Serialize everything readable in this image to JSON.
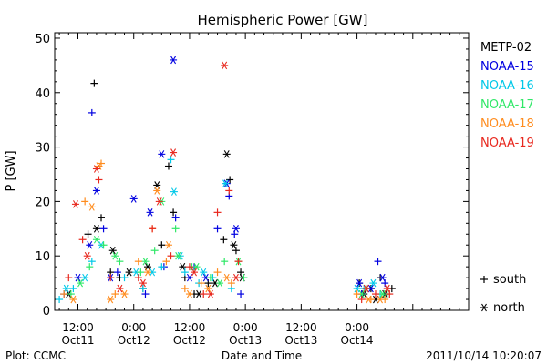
{
  "footer": {
    "plot_by": "Plot: CCMC",
    "timestamp": "2011/10/14 10:20:07"
  },
  "chart_data": {
    "type": "scatter",
    "title": "Hemispheric Power [GW]",
    "xlabel": "Date and Time",
    "ylabel": "P [GW]",
    "xlim": [
      "2011-10-11T07:00",
      "2011-10-15T00:00"
    ],
    "ylim": [
      0,
      51
    ],
    "y_ticks": [
      0,
      10,
      20,
      30,
      40,
      50
    ],
    "x_ticks": [
      {
        "time": "2011-10-11T12:00",
        "label": "12:00",
        "sublabel": "Oct11"
      },
      {
        "time": "2011-10-12T00:00",
        "label": "0:00",
        "sublabel": "Oct12"
      },
      {
        "time": "2011-10-12T12:00",
        "label": "12:00",
        "sublabel": "Oct12"
      },
      {
        "time": "2011-10-13T00:00",
        "label": "0:00",
        "sublabel": "Oct13"
      },
      {
        "time": "2011-10-13T12:00",
        "label": "12:00",
        "sublabel": "Oct13"
      },
      {
        "time": "2011-10-14T00:00",
        "label": "0:00",
        "sublabel": "Oct14"
      }
    ],
    "marker_legend": [
      {
        "symbol": "+",
        "label": "south"
      },
      {
        "symbol": "*",
        "label": "north"
      }
    ],
    "series": [
      {
        "name": "METP-02",
        "color": "#000000",
        "south": [
          [
            "2011-10-11T14:10",
            14
          ],
          [
            "2011-10-11T15:30",
            41.7
          ],
          [
            "2011-10-11T17:00",
            17
          ],
          [
            "2011-10-11T19:00",
            7
          ],
          [
            "2011-10-11T21:00",
            6
          ],
          [
            "2011-10-12T02:00",
            4
          ],
          [
            "2011-10-12T06:00",
            12
          ],
          [
            "2011-10-12T07:30",
            26.5
          ],
          [
            "2011-10-12T08:30",
            18
          ],
          [
            "2011-10-12T11:00",
            6
          ],
          [
            "2011-10-12T13:00",
            3
          ],
          [
            "2011-10-12T16:00",
            5
          ],
          [
            "2011-10-12T19:20",
            13
          ],
          [
            "2011-10-12T20:40",
            24
          ],
          [
            "2011-10-12T22:00",
            11
          ],
          [
            "2011-10-12T23:00",
            7
          ],
          [
            "2011-10-14T00:30",
            5
          ],
          [
            "2011-10-14T03:00",
            4
          ],
          [
            "2011-10-14T05:00",
            6
          ],
          [
            "2011-10-14T07:30",
            4
          ]
        ],
        "north": [
          [
            "2011-10-11T10:00",
            3
          ],
          [
            "2011-10-11T16:00",
            15
          ],
          [
            "2011-10-11T19:30",
            11
          ],
          [
            "2011-10-11T23:00",
            7
          ],
          [
            "2011-10-12T03:00",
            8
          ],
          [
            "2011-10-12T05:00",
            23
          ],
          [
            "2011-10-12T10:30",
            8
          ],
          [
            "2011-10-12T14:00",
            3
          ],
          [
            "2011-10-12T17:30",
            5
          ],
          [
            "2011-10-12T20:00",
            28.7
          ],
          [
            "2011-10-12T21:30",
            12
          ],
          [
            "2011-10-12T23:20",
            6
          ],
          [
            "2011-10-14T01:30",
            3
          ],
          [
            "2011-10-14T04:00",
            2
          ],
          [
            "2011-10-14T06:00",
            3
          ]
        ]
      },
      {
        "name": "NOAA-15",
        "color": "#0000e0",
        "south": [
          [
            "2011-10-11T09:00",
            3
          ],
          [
            "2011-10-11T15:00",
            36.3
          ],
          [
            "2011-10-11T17:30",
            15
          ],
          [
            "2011-10-11T20:30",
            7
          ],
          [
            "2011-10-12T02:30",
            3
          ],
          [
            "2011-10-12T06:30",
            8
          ],
          [
            "2011-10-12T09:00",
            17
          ],
          [
            "2011-10-12T13:00",
            8
          ],
          [
            "2011-10-12T18:00",
            15
          ],
          [
            "2011-10-12T20:30",
            21
          ],
          [
            "2011-10-12T21:40",
            14
          ],
          [
            "2011-10-12T23:00",
            3
          ],
          [
            "2011-10-14T01:00",
            3
          ],
          [
            "2011-10-14T04:30",
            9
          ],
          [
            "2011-10-14T06:00",
            5
          ]
        ],
        "north": [
          [
            "2011-10-11T12:00",
            6
          ],
          [
            "2011-10-11T14:30",
            12
          ],
          [
            "2011-10-11T16:00",
            22
          ],
          [
            "2011-10-11T19:00",
            6
          ],
          [
            "2011-10-12T00:00",
            20.5
          ],
          [
            "2011-10-12T03:30",
            18
          ],
          [
            "2011-10-12T06:00",
            28.7
          ],
          [
            "2011-10-12T08:30",
            46
          ],
          [
            "2011-10-12T12:00",
            6
          ],
          [
            "2011-10-12T15:30",
            6
          ],
          [
            "2011-10-12T20:00",
            23.3
          ],
          [
            "2011-10-12T22:00",
            15
          ],
          [
            "2011-10-14T00:30",
            5
          ],
          [
            "2011-10-14T03:00",
            4
          ],
          [
            "2011-10-14T05:30",
            6
          ]
        ]
      },
      {
        "name": "NOAA-16",
        "color": "#00c8e8",
        "south": [
          [
            "2011-10-11T08:00",
            2
          ],
          [
            "2011-10-11T11:00",
            4
          ],
          [
            "2011-10-11T15:00",
            9
          ],
          [
            "2011-10-11T22:00",
            6
          ],
          [
            "2011-10-12T02:00",
            4
          ],
          [
            "2011-10-12T06:00",
            8
          ],
          [
            "2011-10-12T08:00",
            27.7
          ],
          [
            "2011-10-12T11:00",
            7
          ],
          [
            "2011-10-12T14:00",
            5
          ],
          [
            "2011-10-12T17:00",
            6
          ],
          [
            "2011-10-12T21:00",
            4
          ],
          [
            "2011-10-14T01:30",
            4
          ],
          [
            "2011-10-14T05:00",
            3
          ]
        ],
        "north": [
          [
            "2011-10-11T09:30",
            4
          ],
          [
            "2011-10-11T13:30",
            6
          ],
          [
            "2011-10-11T17:00",
            12
          ],
          [
            "2011-10-12T00:30",
            7
          ],
          [
            "2011-10-12T04:00",
            7
          ],
          [
            "2011-10-12T08:40",
            21.8
          ],
          [
            "2011-10-12T10:00",
            10
          ],
          [
            "2011-10-12T15:00",
            7
          ],
          [
            "2011-10-12T19:40",
            23.3
          ],
          [
            "2011-10-14T00:00",
            4
          ],
          [
            "2011-10-14T03:30",
            5
          ]
        ]
      },
      {
        "name": "NOAA-17",
        "color": "#30e868",
        "south": [
          [
            "2011-10-11T10:30",
            3
          ],
          [
            "2011-10-11T14:30",
            8
          ],
          [
            "2011-10-11T17:30",
            12
          ],
          [
            "2011-10-11T21:00",
            9
          ],
          [
            "2011-10-12T01:30",
            7
          ],
          [
            "2011-10-12T04:30",
            11
          ],
          [
            "2011-10-12T09:00",
            15
          ],
          [
            "2011-10-12T12:30",
            8
          ],
          [
            "2011-10-12T16:30",
            6
          ],
          [
            "2011-10-12T19:30",
            9
          ],
          [
            "2011-10-12T23:40",
            6
          ],
          [
            "2011-10-14T02:00",
            4
          ],
          [
            "2011-10-14T06:30",
            3
          ]
        ],
        "north": [
          [
            "2011-10-11T12:30",
            5
          ],
          [
            "2011-10-11T16:00",
            13
          ],
          [
            "2011-10-11T20:00",
            10
          ],
          [
            "2011-10-12T02:30",
            9
          ],
          [
            "2011-10-12T06:00",
            20
          ],
          [
            "2011-10-12T09:30",
            10
          ],
          [
            "2011-10-12T13:30",
            8
          ],
          [
            "2011-10-12T18:30",
            5
          ],
          [
            "2011-10-12T22:30",
            9
          ],
          [
            "2011-10-14T01:00",
            3
          ],
          [
            "2011-10-14T05:30",
            3
          ]
        ]
      },
      {
        "name": "NOAA-18",
        "color": "#ff8c1e",
        "south": [
          [
            "2011-10-11T09:00",
            3
          ],
          [
            "2011-10-11T13:30",
            20
          ],
          [
            "2011-10-11T17:00",
            27
          ],
          [
            "2011-10-11T20:00",
            3
          ],
          [
            "2011-10-12T01:00",
            9
          ],
          [
            "2011-10-12T04:00",
            15
          ],
          [
            "2011-10-12T07:00",
            9
          ],
          [
            "2011-10-12T11:00",
            4
          ],
          [
            "2011-10-12T14:30",
            5
          ],
          [
            "2011-10-12T18:00",
            7
          ],
          [
            "2011-10-12T21:00",
            5
          ],
          [
            "2011-10-14T00:00",
            3
          ],
          [
            "2011-10-14T03:00",
            2
          ],
          [
            "2011-10-14T06:00",
            2
          ]
        ],
        "north": [
          [
            "2011-10-11T11:00",
            2
          ],
          [
            "2011-10-11T15:00",
            19
          ],
          [
            "2011-10-11T16:30",
            26.5
          ],
          [
            "2011-10-11T19:00",
            2
          ],
          [
            "2011-10-11T22:00",
            3
          ],
          [
            "2011-10-12T03:00",
            7
          ],
          [
            "2011-10-12T05:00",
            22
          ],
          [
            "2011-10-12T07:30",
            12
          ],
          [
            "2011-10-12T12:00",
            3
          ],
          [
            "2011-10-12T16:00",
            4
          ],
          [
            "2011-10-12T20:00",
            6
          ],
          [
            "2011-10-14T02:30",
            2
          ],
          [
            "2011-10-14T05:00",
            2
          ]
        ]
      },
      {
        "name": "NOAA-19",
        "color": "#e8281e",
        "south": [
          [
            "2011-10-11T10:00",
            6
          ],
          [
            "2011-10-11T13:00",
            13
          ],
          [
            "2011-10-11T16:30",
            24
          ],
          [
            "2011-10-11T19:00",
            6
          ],
          [
            "2011-10-12T01:00",
            6
          ],
          [
            "2011-10-12T04:00",
            15
          ],
          [
            "2011-10-12T08:00",
            10
          ],
          [
            "2011-10-12T12:00",
            8
          ],
          [
            "2011-10-12T15:00",
            3
          ],
          [
            "2011-10-12T18:00",
            18
          ],
          [
            "2011-10-12T20:30",
            22
          ],
          [
            "2011-10-12T22:30",
            9
          ],
          [
            "2011-10-14T01:00",
            2
          ],
          [
            "2011-10-14T04:00",
            3
          ],
          [
            "2011-10-14T07:00",
            3
          ]
        ],
        "north": [
          [
            "2011-10-11T11:30",
            19.5
          ],
          [
            "2011-10-11T14:00",
            10
          ],
          [
            "2011-10-11T16:00",
            26
          ],
          [
            "2011-10-11T21:00",
            4
          ],
          [
            "2011-10-12T02:00",
            5
          ],
          [
            "2011-10-12T05:30",
            20
          ],
          [
            "2011-10-12T08:30",
            29
          ],
          [
            "2011-10-12T13:00",
            7
          ],
          [
            "2011-10-12T16:30",
            3
          ],
          [
            "2011-10-12T19:30",
            45
          ],
          [
            "2011-10-12T22:00",
            6
          ],
          [
            "2011-10-14T02:00",
            4
          ],
          [
            "2011-10-14T06:30",
            4
          ]
        ]
      }
    ]
  }
}
